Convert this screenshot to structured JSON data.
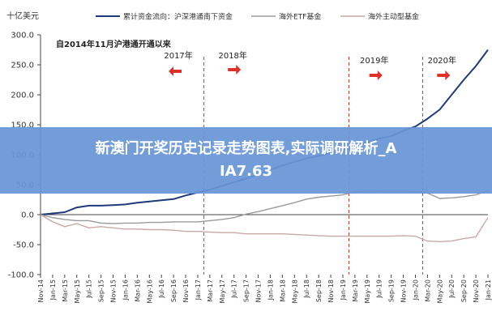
{
  "chart_data": {
    "type": "line",
    "ylabel_unit": "十亿美元",
    "annotation_title": "自2014年11月沪港通开通以来",
    "ylim": [
      -100,
      300
    ],
    "yticks": [
      "300.0",
      "250.0",
      "200.0",
      "150.0",
      "100.0",
      "50.0",
      "0.0",
      "-50.0",
      "-100.0"
    ],
    "x_tick_labels": [
      "Nov-14",
      "Jan-15",
      "Mar-15",
      "May-15",
      "Jul-15",
      "Sep-15",
      "Nov-15",
      "Jan-16",
      "Mar-16",
      "May-16",
      "Jul-16",
      "Sep-16",
      "Nov-16",
      "Jan-17",
      "Mar-17",
      "May-17",
      "Jul-17",
      "Sep-17",
      "Nov-17",
      "Jan-18",
      "Mar-18",
      "May-18",
      "Jul-18",
      "Sep-18",
      "Nov-18",
      "Jan-19",
      "Mar-19",
      "May-19",
      "Jul-19",
      "Sep-19",
      "Nov-19",
      "Jan-20",
      "Mar-20",
      "May-20",
      "Jul-20",
      "Sep-20",
      "Nov-20",
      "Jan-21"
    ],
    "legend_position": "top",
    "grid": false,
    "series": [
      {
        "name": "累计资金流向：沪深港通南下资金",
        "color": "#1f3a7a",
        "style": "solid",
        "values": [
          0,
          2,
          4,
          12,
          15,
          15,
          16,
          17,
          20,
          22,
          24,
          26,
          32,
          37,
          42,
          48,
          54,
          60,
          67,
          75,
          82,
          88,
          94,
          98,
          103,
          108,
          115,
          120,
          127,
          131,
          140,
          147,
          160,
          175,
          200,
          225,
          248,
          275
        ]
      },
      {
        "name": "海外ETF基金",
        "color": "#9a9a9a",
        "style": "solid",
        "values": [
          0,
          -5,
          -8,
          -10,
          -10,
          -14,
          -15,
          -14,
          -14,
          -13,
          -13,
          -12,
          -12,
          -12,
          -10,
          -8,
          -5,
          1,
          5,
          10,
          15,
          20,
          26,
          29,
          31,
          33,
          38,
          40,
          39,
          40,
          39,
          38,
          36,
          27,
          28,
          30,
          33,
          40
        ]
      },
      {
        "name": "海外主动型基金",
        "color": "#c9a8a8",
        "style": "solid",
        "values": [
          0,
          -12,
          -20,
          -15,
          -22,
          -20,
          -22,
          -24,
          -24,
          -25,
          -25,
          -26,
          -28,
          -28,
          -29,
          -30,
          -30,
          -32,
          -32,
          -32,
          -32,
          -33,
          -34,
          -35,
          -36,
          -36,
          -36,
          -36,
          -36,
          -36,
          -35,
          -36,
          -44,
          -45,
          -44,
          -40,
          -37,
          -5
        ]
      }
    ],
    "markers": [
      {
        "label": "2017年",
        "direction": "left"
      },
      {
        "label": "2018年",
        "direction": "right"
      },
      {
        "label": "2019年",
        "direction": "right"
      },
      {
        "label": "2020年",
        "direction": "right"
      }
    ]
  },
  "banner": {
    "line1": "新澳门开奖历史记录走势图表,实际调研解析_A",
    "line2": "IA7.63"
  },
  "colors": {
    "arrow": "#e0302a",
    "divider": "#c0392b",
    "banner": "#6896d6"
  }
}
